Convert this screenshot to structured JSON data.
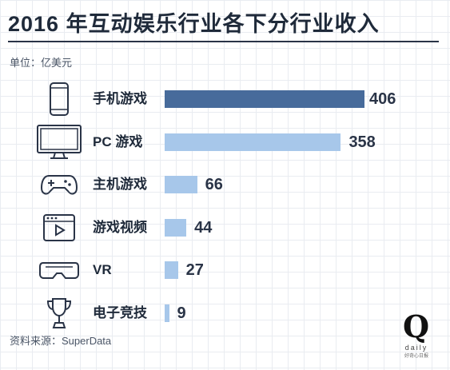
{
  "title": "2016 年互动娱乐行业各下分行业收入",
  "unit_label": "单位：亿美元",
  "source_label": "资料来源：SuperData",
  "logo": {
    "mark": "Q",
    "wordmark": "daily",
    "tagline": "好奇心日报"
  },
  "colors": {
    "highlight": "#476b9b",
    "bar": "#a7c7ea",
    "text": "#1f2a3a"
  },
  "chart_data": {
    "type": "bar",
    "orientation": "horizontal",
    "categories": [
      "手机游戏",
      "PC 游戏",
      "主机游戏",
      "游戏视频",
      "VR",
      "电子竞技"
    ],
    "values": [
      406,
      358,
      66,
      44,
      27,
      9
    ],
    "icons": [
      "phone-icon",
      "monitor-icon",
      "gamepad-icon",
      "video-player-icon",
      "vr-headset-icon",
      "trophy-icon"
    ],
    "highlight_index": 0,
    "xlim": [
      0,
      406
    ],
    "grid": false,
    "legend": "none"
  }
}
